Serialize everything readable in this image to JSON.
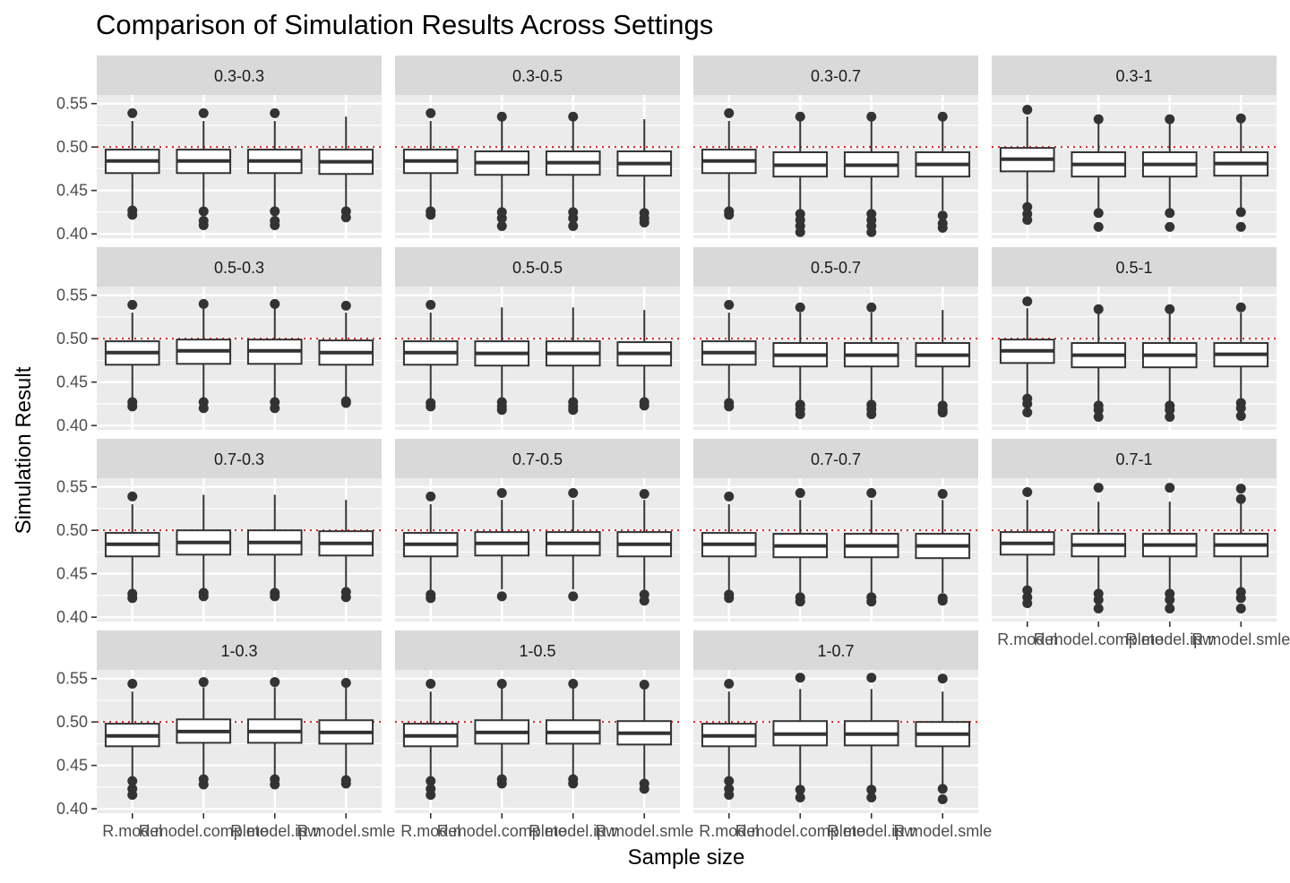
{
  "chart_data": {
    "type": "boxplot",
    "title": "Comparison of Simulation Results Across Settings",
    "xlabel": "Sample size",
    "ylabel": "Simulation Result",
    "ylim": [
      0.395,
      0.56
    ],
    "yticks": [
      0.4,
      0.45,
      0.5,
      0.55
    ],
    "ytick_labels": [
      "0.40",
      "0.45",
      "0.50",
      "0.55"
    ],
    "categories": [
      "R.model",
      "R.model.complete",
      "R.model.ipw",
      "R.model.smle"
    ],
    "reference_line": {
      "value": 0.5,
      "color": "#e31a1c",
      "style": "dotted"
    },
    "grid": true,
    "colors": {
      "panel_bg": "#ebebeb",
      "strip_bg": "#d9d9d9",
      "grid": "#ffffff",
      "box_fill": "#ffffff",
      "box_line": "#333333"
    },
    "panels": [
      {
        "label": "0.3-0.3",
        "boxes": [
          {
            "min": 0.43,
            "q1": 0.47,
            "median": 0.484,
            "q3": 0.497,
            "max": 0.53,
            "outliers": [
              0.539,
              0.427,
              0.422
            ]
          },
          {
            "min": 0.428,
            "q1": 0.47,
            "median": 0.484,
            "q3": 0.497,
            "max": 0.53,
            "outliers": [
              0.539,
              0.426,
              0.415,
              0.41
            ]
          },
          {
            "min": 0.428,
            "q1": 0.47,
            "median": 0.484,
            "q3": 0.497,
            "max": 0.53,
            "outliers": [
              0.539,
              0.426,
              0.415,
              0.41
            ]
          },
          {
            "min": 0.43,
            "q1": 0.469,
            "median": 0.483,
            "q3": 0.497,
            "max": 0.535,
            "outliers": [
              0.426,
              0.419
            ]
          }
        ]
      },
      {
        "label": "0.3-0.5",
        "boxes": [
          {
            "min": 0.43,
            "q1": 0.47,
            "median": 0.484,
            "q3": 0.497,
            "max": 0.53,
            "outliers": [
              0.539,
              0.426,
              0.422
            ]
          },
          {
            "min": 0.428,
            "q1": 0.468,
            "median": 0.482,
            "q3": 0.495,
            "max": 0.53,
            "outliers": [
              0.535,
              0.425,
              0.418,
              0.409
            ]
          },
          {
            "min": 0.428,
            "q1": 0.468,
            "median": 0.482,
            "q3": 0.495,
            "max": 0.53,
            "outliers": [
              0.535,
              0.425,
              0.418,
              0.409
            ]
          },
          {
            "min": 0.428,
            "q1": 0.467,
            "median": 0.481,
            "q3": 0.495,
            "max": 0.532,
            "outliers": [
              0.424,
              0.418,
              0.413
            ]
          }
        ]
      },
      {
        "label": "0.3-0.7",
        "boxes": [
          {
            "min": 0.43,
            "q1": 0.47,
            "median": 0.484,
            "q3": 0.497,
            "max": 0.53,
            "outliers": [
              0.539,
              0.426,
              0.422
            ]
          },
          {
            "min": 0.427,
            "q1": 0.466,
            "median": 0.479,
            "q3": 0.494,
            "max": 0.53,
            "outliers": [
              0.535,
              0.423,
              0.416,
              0.409,
              0.402
            ]
          },
          {
            "min": 0.427,
            "q1": 0.466,
            "median": 0.479,
            "q3": 0.494,
            "max": 0.53,
            "outliers": [
              0.535,
              0.423,
              0.416,
              0.409,
              0.402
            ]
          },
          {
            "min": 0.427,
            "q1": 0.466,
            "median": 0.48,
            "q3": 0.494,
            "max": 0.53,
            "outliers": [
              0.535,
              0.421,
              0.412,
              0.407
            ]
          }
        ]
      },
      {
        "label": "0.3-1",
        "boxes": [
          {
            "min": 0.435,
            "q1": 0.472,
            "median": 0.486,
            "q3": 0.499,
            "max": 0.535,
            "outliers": [
              0.543,
              0.431,
              0.423,
              0.416
            ]
          },
          {
            "min": 0.427,
            "q1": 0.466,
            "median": 0.48,
            "q3": 0.494,
            "max": 0.53,
            "outliers": [
              0.532,
              0.424,
              0.408
            ]
          },
          {
            "min": 0.427,
            "q1": 0.466,
            "median": 0.48,
            "q3": 0.494,
            "max": 0.53,
            "outliers": [
              0.532,
              0.424,
              0.408
            ]
          },
          {
            "min": 0.427,
            "q1": 0.467,
            "median": 0.481,
            "q3": 0.494,
            "max": 0.53,
            "outliers": [
              0.533,
              0.425,
              0.408
            ]
          }
        ]
      },
      {
        "label": "0.5-0.3",
        "boxes": [
          {
            "min": 0.43,
            "q1": 0.47,
            "median": 0.484,
            "q3": 0.497,
            "max": 0.53,
            "outliers": [
              0.539,
              0.427,
              0.422
            ]
          },
          {
            "min": 0.43,
            "q1": 0.471,
            "median": 0.486,
            "q3": 0.499,
            "max": 0.535,
            "outliers": [
              0.54,
              0.427,
              0.42
            ]
          },
          {
            "min": 0.43,
            "q1": 0.471,
            "median": 0.486,
            "q3": 0.499,
            "max": 0.535,
            "outliers": [
              0.54,
              0.427,
              0.42
            ]
          },
          {
            "min": 0.43,
            "q1": 0.47,
            "median": 0.484,
            "q3": 0.498,
            "max": 0.53,
            "outliers": [
              0.538,
              0.428,
              0.426
            ]
          }
        ]
      },
      {
        "label": "0.5-0.5",
        "boxes": [
          {
            "min": 0.43,
            "q1": 0.47,
            "median": 0.484,
            "q3": 0.497,
            "max": 0.53,
            "outliers": [
              0.539,
              0.426,
              0.422
            ]
          },
          {
            "min": 0.43,
            "q1": 0.469,
            "median": 0.483,
            "q3": 0.497,
            "max": 0.536,
            "outliers": [
              0.427,
              0.422,
              0.418
            ]
          },
          {
            "min": 0.43,
            "q1": 0.469,
            "median": 0.483,
            "q3": 0.497,
            "max": 0.536,
            "outliers": [
              0.427,
              0.422,
              0.418
            ]
          },
          {
            "min": 0.43,
            "q1": 0.469,
            "median": 0.483,
            "q3": 0.496,
            "max": 0.533,
            "outliers": [
              0.427,
              0.423
            ]
          }
        ]
      },
      {
        "label": "0.5-0.7",
        "boxes": [
          {
            "min": 0.43,
            "q1": 0.47,
            "median": 0.484,
            "q3": 0.497,
            "max": 0.53,
            "outliers": [
              0.539,
              0.426,
              0.422
            ]
          },
          {
            "min": 0.428,
            "q1": 0.468,
            "median": 0.481,
            "q3": 0.495,
            "max": 0.53,
            "outliers": [
              0.536,
              0.424,
              0.419,
              0.413
            ]
          },
          {
            "min": 0.428,
            "q1": 0.468,
            "median": 0.481,
            "q3": 0.495,
            "max": 0.53,
            "outliers": [
              0.536,
              0.424,
              0.419,
              0.413
            ]
          },
          {
            "min": 0.428,
            "q1": 0.468,
            "median": 0.481,
            "q3": 0.495,
            "max": 0.533,
            "outliers": [
              0.423,
              0.418,
              0.415
            ]
          }
        ]
      },
      {
        "label": "0.5-1",
        "boxes": [
          {
            "min": 0.435,
            "q1": 0.472,
            "median": 0.486,
            "q3": 0.499,
            "max": 0.535,
            "outliers": [
              0.543,
              0.431,
              0.425,
              0.415
            ]
          },
          {
            "min": 0.427,
            "q1": 0.467,
            "median": 0.481,
            "q3": 0.495,
            "max": 0.53,
            "outliers": [
              0.534,
              0.423,
              0.418,
              0.41
            ]
          },
          {
            "min": 0.427,
            "q1": 0.467,
            "median": 0.481,
            "q3": 0.495,
            "max": 0.53,
            "outliers": [
              0.534,
              0.423,
              0.418,
              0.41
            ]
          },
          {
            "min": 0.428,
            "q1": 0.468,
            "median": 0.482,
            "q3": 0.495,
            "max": 0.53,
            "outliers": [
              0.536,
              0.426,
              0.42,
              0.411
            ]
          }
        ]
      },
      {
        "label": "0.7-0.3",
        "boxes": [
          {
            "min": 0.43,
            "q1": 0.47,
            "median": 0.484,
            "q3": 0.497,
            "max": 0.53,
            "outliers": [
              0.539,
              0.427,
              0.422
            ]
          },
          {
            "min": 0.43,
            "q1": 0.472,
            "median": 0.486,
            "q3": 0.5,
            "max": 0.541,
            "outliers": [
              0.428,
              0.424
            ]
          },
          {
            "min": 0.43,
            "q1": 0.472,
            "median": 0.486,
            "q3": 0.5,
            "max": 0.541,
            "outliers": [
              0.428,
              0.424
            ]
          },
          {
            "min": 0.432,
            "q1": 0.471,
            "median": 0.485,
            "q3": 0.499,
            "max": 0.535,
            "outliers": [
              0.429,
              0.423
            ]
          }
        ]
      },
      {
        "label": "0.7-0.5",
        "boxes": [
          {
            "min": 0.43,
            "q1": 0.47,
            "median": 0.484,
            "q3": 0.497,
            "max": 0.53,
            "outliers": [
              0.539,
              0.426,
              0.422
            ]
          },
          {
            "min": 0.432,
            "q1": 0.471,
            "median": 0.485,
            "q3": 0.498,
            "max": 0.535,
            "outliers": [
              0.543,
              0.424
            ]
          },
          {
            "min": 0.432,
            "q1": 0.471,
            "median": 0.485,
            "q3": 0.498,
            "max": 0.535,
            "outliers": [
              0.543,
              0.424
            ]
          },
          {
            "min": 0.43,
            "q1": 0.47,
            "median": 0.484,
            "q3": 0.498,
            "max": 0.535,
            "outliers": [
              0.542,
              0.426,
              0.419
            ]
          }
        ]
      },
      {
        "label": "0.7-0.7",
        "boxes": [
          {
            "min": 0.43,
            "q1": 0.47,
            "median": 0.484,
            "q3": 0.497,
            "max": 0.53,
            "outliers": [
              0.539,
              0.426,
              0.422
            ]
          },
          {
            "min": 0.428,
            "q1": 0.469,
            "median": 0.482,
            "q3": 0.496,
            "max": 0.535,
            "outliers": [
              0.543,
              0.423,
              0.418
            ]
          },
          {
            "min": 0.428,
            "q1": 0.469,
            "median": 0.482,
            "q3": 0.496,
            "max": 0.535,
            "outliers": [
              0.543,
              0.423,
              0.418
            ]
          },
          {
            "min": 0.428,
            "q1": 0.468,
            "median": 0.482,
            "q3": 0.496,
            "max": 0.535,
            "outliers": [
              0.542,
              0.422,
              0.419
            ]
          }
        ]
      },
      {
        "label": "0.7-1",
        "boxes": [
          {
            "min": 0.436,
            "q1": 0.472,
            "median": 0.485,
            "q3": 0.498,
            "max": 0.535,
            "outliers": [
              0.544,
              0.431,
              0.423,
              0.416
            ]
          },
          {
            "min": 0.43,
            "q1": 0.47,
            "median": 0.483,
            "q3": 0.496,
            "max": 0.533,
            "outliers": [
              0.549,
              0.427,
              0.42,
              0.41
            ]
          },
          {
            "min": 0.43,
            "q1": 0.47,
            "median": 0.483,
            "q3": 0.496,
            "max": 0.533,
            "outliers": [
              0.549,
              0.427,
              0.42,
              0.41
            ]
          },
          {
            "min": 0.432,
            "q1": 0.47,
            "median": 0.483,
            "q3": 0.496,
            "max": 0.533,
            "outliers": [
              0.548,
              0.536,
              0.429,
              0.422,
              0.41
            ]
          }
        ]
      },
      {
        "label": "1-0.3",
        "boxes": [
          {
            "min": 0.435,
            "q1": 0.472,
            "median": 0.484,
            "q3": 0.498,
            "max": 0.535,
            "outliers": [
              0.544,
              0.432,
              0.423,
              0.416
            ]
          },
          {
            "min": 0.437,
            "q1": 0.476,
            "median": 0.489,
            "q3": 0.503,
            "max": 0.54,
            "outliers": [
              0.546,
              0.434,
              0.428
            ]
          },
          {
            "min": 0.437,
            "q1": 0.476,
            "median": 0.489,
            "q3": 0.503,
            "max": 0.54,
            "outliers": [
              0.546,
              0.434,
              0.428
            ]
          },
          {
            "min": 0.437,
            "q1": 0.475,
            "median": 0.488,
            "q3": 0.502,
            "max": 0.54,
            "outliers": [
              0.545,
              0.433,
              0.429
            ]
          }
        ]
      },
      {
        "label": "1-0.5",
        "boxes": [
          {
            "min": 0.435,
            "q1": 0.472,
            "median": 0.484,
            "q3": 0.498,
            "max": 0.535,
            "outliers": [
              0.544,
              0.432,
              0.423,
              0.416
            ]
          },
          {
            "min": 0.437,
            "q1": 0.475,
            "median": 0.488,
            "q3": 0.502,
            "max": 0.54,
            "outliers": [
              0.544,
              0.434,
              0.429
            ]
          },
          {
            "min": 0.437,
            "q1": 0.475,
            "median": 0.488,
            "q3": 0.502,
            "max": 0.54,
            "outliers": [
              0.544,
              0.434,
              0.429
            ]
          },
          {
            "min": 0.434,
            "q1": 0.474,
            "median": 0.487,
            "q3": 0.501,
            "max": 0.54,
            "outliers": [
              0.543,
              0.429,
              0.423
            ]
          }
        ]
      },
      {
        "label": "1-0.7",
        "boxes": [
          {
            "min": 0.435,
            "q1": 0.472,
            "median": 0.484,
            "q3": 0.498,
            "max": 0.535,
            "outliers": [
              0.544,
              0.432,
              0.423,
              0.416
            ]
          },
          {
            "min": 0.427,
            "q1": 0.473,
            "median": 0.486,
            "q3": 0.501,
            "max": 0.538,
            "outliers": [
              0.551,
              0.422,
              0.413
            ]
          },
          {
            "min": 0.427,
            "q1": 0.473,
            "median": 0.486,
            "q3": 0.501,
            "max": 0.538,
            "outliers": [
              0.551,
              0.422,
              0.413
            ]
          },
          {
            "min": 0.427,
            "q1": 0.472,
            "median": 0.486,
            "q3": 0.5,
            "max": 0.535,
            "outliers": [
              0.55,
              0.423,
              0.411
            ]
          }
        ]
      }
    ]
  }
}
